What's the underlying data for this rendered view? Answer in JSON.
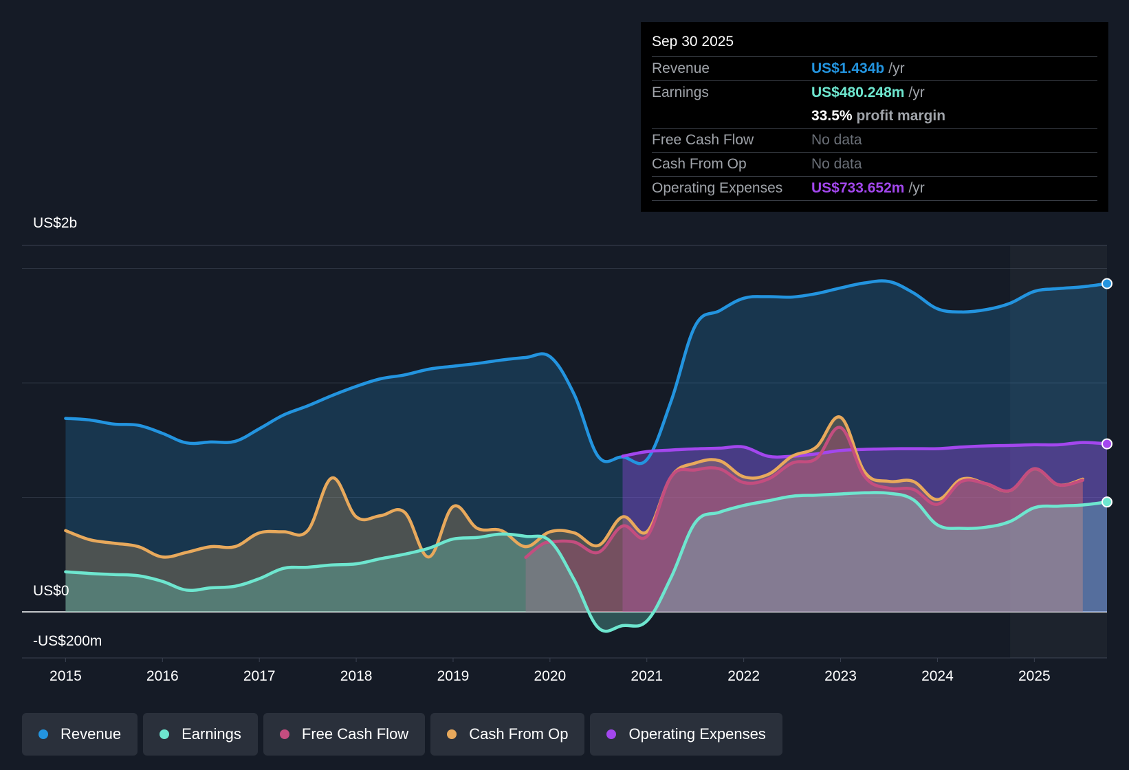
{
  "colors": {
    "background": "#151b26",
    "revenue": "#2394df",
    "earnings": "#6ee6cf",
    "free_cash_flow": "#c44d7f",
    "cash_from_op": "#e8a95c",
    "operating_expenses": "#a347ee"
  },
  "tooltip": {
    "date": "Sep 30 2025",
    "rows": {
      "revenue": {
        "label": "Revenue",
        "value": "US$1.434b",
        "unit": "/yr"
      },
      "earnings": {
        "label": "Earnings",
        "value": "US$480.248m",
        "unit": "/yr"
      },
      "profit_margin": {
        "value": "33.5%",
        "text": "profit margin"
      },
      "free_cash_flow": {
        "label": "Free Cash Flow",
        "value": "No data"
      },
      "cash_from_op": {
        "label": "Cash From Op",
        "value": "No data"
      },
      "operating_expenses": {
        "label": "Operating Expenses",
        "value": "US$733.652m",
        "unit": "/yr"
      }
    }
  },
  "legend": [
    {
      "name": "revenue",
      "label": "Revenue",
      "color": "#2394df"
    },
    {
      "name": "earnings",
      "label": "Earnings",
      "color": "#6ee6cf"
    },
    {
      "name": "free-cash-flow",
      "label": "Free Cash Flow",
      "color": "#c44d7f"
    },
    {
      "name": "cash-from-op",
      "label": "Cash From Op",
      "color": "#e8a95c"
    },
    {
      "name": "operating-expenses",
      "label": "Operating Expenses",
      "color": "#a347ee"
    }
  ],
  "chart_data": {
    "type": "area",
    "title": "",
    "y_axis_labels": [
      "US$2b",
      "US$0",
      "-US$200m"
    ],
    "y_label_values": [
      2000,
      0,
      -200
    ],
    "ylim": [
      -200,
      1600
    ],
    "gridlines": [
      0,
      500,
      1000,
      1500
    ],
    "xlim": [
      2014.55,
      2025.75
    ],
    "x_ticks": [
      2015,
      2016,
      2017,
      2018,
      2019,
      2020,
      2021,
      2022,
      2023,
      2024,
      2025
    ],
    "x_tick_labels": [
      "2015",
      "2016",
      "2017",
      "2018",
      "2019",
      "2020",
      "2021",
      "2022",
      "2023",
      "2024",
      "2025"
    ],
    "forecast_start": 2024.75,
    "series": [
      {
        "name": "Revenue",
        "key": "revenue",
        "x": [
          2015.0,
          2015.25,
          2015.5,
          2015.75,
          2016.0,
          2016.25,
          2016.5,
          2016.75,
          2017.0,
          2017.25,
          2017.5,
          2017.75,
          2018.0,
          2018.25,
          2018.5,
          2018.75,
          2019.0,
          2019.25,
          2019.5,
          2019.75,
          2020.0,
          2020.25,
          2020.5,
          2020.75,
          2021.0,
          2021.25,
          2021.5,
          2021.75,
          2022.0,
          2022.25,
          2022.5,
          2022.75,
          2023.0,
          2023.25,
          2023.5,
          2023.75,
          2024.0,
          2024.25,
          2024.5,
          2024.75,
          2025.0,
          2025.25,
          2025.5,
          2025.75
        ],
        "values": [
          845,
          838,
          820,
          815,
          780,
          738,
          742,
          745,
          800,
          860,
          900,
          945,
          985,
          1018,
          1035,
          1060,
          1073,
          1085,
          1100,
          1111,
          1115,
          950,
          678,
          677,
          665,
          920,
          1250,
          1315,
          1370,
          1377,
          1375,
          1390,
          1415,
          1437,
          1443,
          1394,
          1324,
          1310,
          1320,
          1348,
          1400,
          1412,
          1420,
          1434
        ]
      },
      {
        "name": "Earnings",
        "key": "earnings",
        "x": [
          2015.0,
          2015.25,
          2015.5,
          2015.75,
          2016.0,
          2016.25,
          2016.5,
          2016.75,
          2017.0,
          2017.25,
          2017.5,
          2017.75,
          2018.0,
          2018.25,
          2018.5,
          2018.75,
          2019.0,
          2019.25,
          2019.5,
          2019.75,
          2020.0,
          2020.25,
          2020.5,
          2020.75,
          2021.0,
          2021.25,
          2021.5,
          2021.75,
          2022.0,
          2022.25,
          2022.5,
          2022.75,
          2023.0,
          2023.25,
          2023.5,
          2023.75,
          2024.0,
          2024.25,
          2024.5,
          2024.75,
          2025.0,
          2025.25,
          2025.5,
          2025.75
        ],
        "values": [
          175,
          168,
          163,
          158,
          133,
          95,
          105,
          112,
          145,
          190,
          195,
          205,
          210,
          232,
          252,
          278,
          318,
          325,
          340,
          330,
          310,
          140,
          -70,
          -60,
          -40,
          150,
          390,
          435,
          465,
          485,
          505,
          510,
          515,
          520,
          518,
          490,
          380,
          365,
          370,
          395,
          455,
          462,
          467,
          480
        ]
      },
      {
        "name": "Free Cash Flow",
        "key": "free_cash_flow",
        "x": [
          2019.75,
          2019.9,
          2020.0,
          2020.25,
          2020.5,
          2020.75,
          2021.0,
          2021.25,
          2021.5,
          2021.75,
          2022.0,
          2022.25,
          2022.5,
          2022.75,
          2023.0,
          2023.25,
          2023.5,
          2023.75,
          2024.0,
          2024.25,
          2024.5,
          2024.75,
          2025.0,
          2025.25,
          2025.5
        ],
        "values": [
          238,
          290,
          305,
          305,
          260,
          375,
          330,
          590,
          620,
          625,
          565,
          580,
          650,
          670,
          805,
          590,
          540,
          535,
          470,
          570,
          560,
          530,
          625,
          555,
          575
        ]
      },
      {
        "name": "Cash From Op",
        "key": "cash_from_op",
        "x": [
          2015.0,
          2015.25,
          2015.5,
          2015.75,
          2016.0,
          2016.25,
          2016.5,
          2016.75,
          2017.0,
          2017.25,
          2017.5,
          2017.75,
          2018.0,
          2018.25,
          2018.5,
          2018.75,
          2019.0,
          2019.25,
          2019.5,
          2019.75,
          2020.0,
          2020.25,
          2020.5,
          2020.75,
          2021.0,
          2021.25,
          2021.5,
          2021.75,
          2022.0,
          2022.25,
          2022.5,
          2022.75,
          2023.0,
          2023.25,
          2023.5,
          2023.75,
          2024.0,
          2024.25,
          2024.5,
          2024.75,
          2025.0,
          2025.25,
          2025.5
        ],
        "values": [
          355,
          315,
          300,
          285,
          240,
          260,
          285,
          285,
          345,
          350,
          355,
          585,
          415,
          420,
          435,
          240,
          460,
          365,
          355,
          285,
          350,
          345,
          290,
          415,
          350,
          590,
          650,
          660,
          590,
          600,
          680,
          720,
          850,
          610,
          570,
          570,
          490,
          580,
          560,
          530,
          625,
          555,
          580
        ]
      },
      {
        "name": "Operating Expenses",
        "key": "operating_expenses",
        "x": [
          2020.75,
          2021.0,
          2021.25,
          2021.5,
          2021.75,
          2022.0,
          2022.25,
          2022.5,
          2022.75,
          2023.0,
          2023.25,
          2023.5,
          2023.75,
          2024.0,
          2024.25,
          2024.5,
          2024.75,
          2025.0,
          2025.25,
          2025.5,
          2025.75
        ],
        "values": [
          680,
          700,
          707,
          712,
          715,
          720,
          680,
          680,
          690,
          705,
          710,
          712,
          713,
          713,
          720,
          725,
          727,
          730,
          730,
          740,
          734
        ]
      }
    ]
  }
}
